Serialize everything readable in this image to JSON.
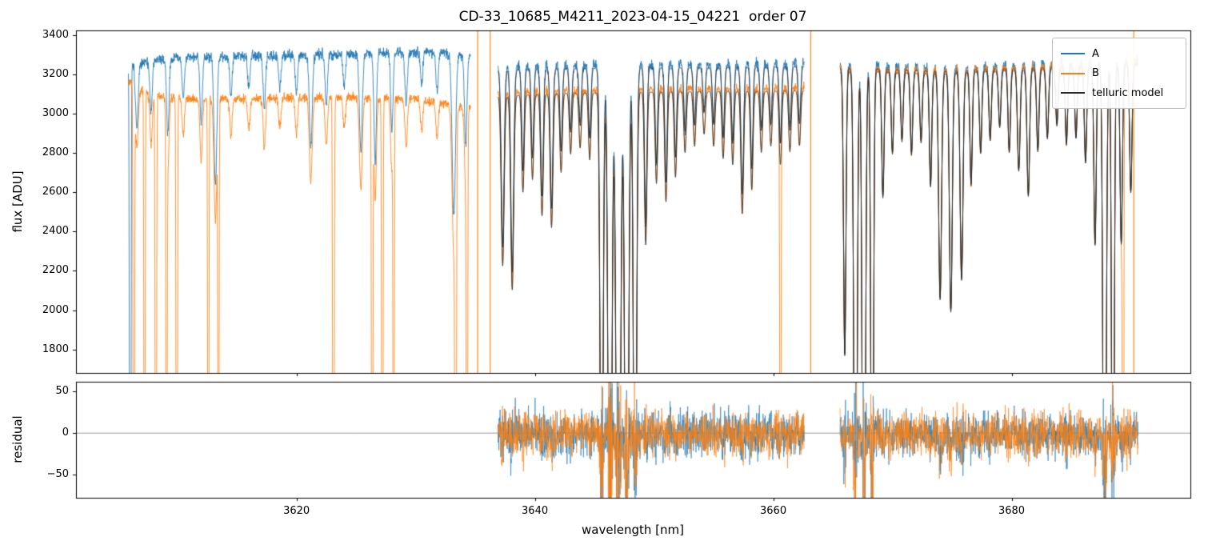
{
  "chart_data": {
    "type": "line",
    "title": "CD-33_10685_M4211_2023-04-15_04221  order 07",
    "xlabel": "wavelength [nm]",
    "legend_position": "upper right",
    "xlim": [
      3601.5,
      3695.0
    ],
    "xticks": [
      3620,
      3640,
      3660,
      3680
    ],
    "panels": [
      {
        "name": "flux",
        "ylabel": "flux [ADU]",
        "ylim": [
          1680,
          3425
        ],
        "yticks": [
          1800,
          2000,
          2200,
          2400,
          2600,
          2800,
          3000,
          3200,
          3400
        ]
      },
      {
        "name": "residual",
        "ylabel": "residual",
        "ylim": [
          -78,
          62
        ],
        "yticks": [
          -50,
          0,
          50
        ],
        "zero_line": true
      }
    ],
    "series": [
      {
        "name": "A",
        "color": "#1f77b4"
      },
      {
        "name": "B",
        "color": "#ff7f0e"
      },
      {
        "name": "telluric model",
        "color": "#2a2a2a"
      }
    ],
    "segments": [
      {
        "x0": 3605.9,
        "x1": 3634.6,
        "model": false
      },
      {
        "x0": 3636.9,
        "x1": 3662.6,
        "model": true
      },
      {
        "x0": 3665.6,
        "x1": 3690.6,
        "model": true
      }
    ],
    "continuum_A": [
      [
        3605.9,
        3260
      ],
      [
        3610,
        3285
      ],
      [
        3616,
        3295
      ],
      [
        3622,
        3300
      ],
      [
        3628,
        3310
      ],
      [
        3632,
        3315
      ],
      [
        3634.6,
        3295
      ],
      [
        3636.9,
        3240
      ],
      [
        3642,
        3245
      ],
      [
        3648,
        3250
      ],
      [
        3654,
        3252
      ],
      [
        3659,
        3255
      ],
      [
        3662.6,
        3258
      ],
      [
        3665.6,
        3250
      ],
      [
        3669,
        3245
      ],
      [
        3673,
        3235
      ],
      [
        3677,
        3240
      ],
      [
        3681,
        3250
      ],
      [
        3685,
        3255
      ],
      [
        3690.6,
        3270
      ]
    ],
    "continuum_B": [
      [
        3605.9,
        3160
      ],
      [
        3608,
        3090
      ],
      [
        3612,
        3075
      ],
      [
        3618,
        3080
      ],
      [
        3624,
        3085
      ],
      [
        3630,
        3075
      ],
      [
        3634.6,
        3030
      ],
      [
        3636.9,
        3105
      ],
      [
        3642,
        3120
      ],
      [
        3648,
        3125
      ],
      [
        3654,
        3130
      ],
      [
        3659,
        3130
      ],
      [
        3662.6,
        3135
      ],
      [
        3665.6,
        3230
      ],
      [
        3669,
        3230
      ],
      [
        3673,
        3220
      ],
      [
        3677,
        3230
      ],
      [
        3681,
        3240
      ],
      [
        3685,
        3245
      ],
      [
        3690.6,
        3265
      ]
    ],
    "telluric_lines": [
      [
        3606.6,
        0.1,
        0.12
      ],
      [
        3607.8,
        0.08,
        0.1
      ],
      [
        3609.2,
        0.12,
        0.1
      ],
      [
        3610.5,
        0.06,
        0.1
      ],
      [
        3612.0,
        0.1,
        0.1
      ],
      [
        3613.2,
        0.2,
        0.12
      ],
      [
        3614.5,
        0.06,
        0.1
      ],
      [
        3616.0,
        0.05,
        0.1
      ],
      [
        3617.3,
        0.08,
        0.1
      ],
      [
        3618.6,
        0.05,
        0.1
      ],
      [
        3620.0,
        0.06,
        0.1
      ],
      [
        3621.2,
        0.14,
        0.12
      ],
      [
        3622.5,
        0.08,
        0.1
      ],
      [
        3624.0,
        0.05,
        0.1
      ],
      [
        3625.4,
        0.15,
        0.12
      ],
      [
        3626.6,
        0.17,
        0.1
      ],
      [
        3628.0,
        0.12,
        0.1
      ],
      [
        3629.2,
        0.08,
        0.1
      ],
      [
        3630.5,
        0.05,
        0.1
      ],
      [
        3631.8,
        0.06,
        0.1
      ],
      [
        3633.2,
        0.25,
        0.14
      ],
      [
        3634.2,
        0.14,
        0.1
      ],
      [
        3637.3,
        0.28,
        0.12
      ],
      [
        3638.1,
        0.32,
        0.12
      ],
      [
        3639.0,
        0.16,
        0.1
      ],
      [
        3639.8,
        0.14,
        0.1
      ],
      [
        3640.6,
        0.2,
        0.11
      ],
      [
        3641.4,
        0.22,
        0.11
      ],
      [
        3642.2,
        0.13,
        0.1
      ],
      [
        3643.0,
        0.1,
        0.1
      ],
      [
        3643.8,
        0.09,
        0.1
      ],
      [
        3644.6,
        0.11,
        0.1
      ],
      [
        3645.6,
        0.85,
        0.12
      ],
      [
        3646.3,
        1.06,
        0.14
      ],
      [
        3647.0,
        1.1,
        0.16
      ],
      [
        3647.7,
        1.06,
        0.14
      ],
      [
        3648.4,
        0.92,
        0.12
      ],
      [
        3649.3,
        0.25,
        0.1
      ],
      [
        3650.2,
        0.15,
        0.1
      ],
      [
        3651.0,
        0.18,
        0.1
      ],
      [
        3651.8,
        0.14,
        0.1
      ],
      [
        3652.6,
        0.1,
        0.1
      ],
      [
        3653.4,
        0.09,
        0.1
      ],
      [
        3654.2,
        0.07,
        0.1
      ],
      [
        3655.0,
        0.09,
        0.1
      ],
      [
        3655.8,
        0.11,
        0.1
      ],
      [
        3656.6,
        0.12,
        0.1
      ],
      [
        3657.4,
        0.2,
        0.11
      ],
      [
        3658.2,
        0.16,
        0.1
      ],
      [
        3659.0,
        0.1,
        0.1
      ],
      [
        3659.8,
        0.09,
        0.1
      ],
      [
        3660.6,
        0.12,
        0.1
      ],
      [
        3661.4,
        0.1,
        0.1
      ],
      [
        3662.2,
        0.09,
        0.1
      ],
      [
        3666.0,
        0.45,
        0.1
      ],
      [
        3666.9,
        1.06,
        0.12
      ],
      [
        3667.6,
        1.1,
        0.12
      ],
      [
        3668.3,
        0.96,
        0.1
      ],
      [
        3669.2,
        0.2,
        0.1
      ],
      [
        3670.0,
        0.13,
        0.1
      ],
      [
        3670.8,
        0.11,
        0.1
      ],
      [
        3671.6,
        0.13,
        0.1
      ],
      [
        3672.4,
        0.11,
        0.1
      ],
      [
        3673.2,
        0.18,
        0.1
      ],
      [
        3674.0,
        0.36,
        0.12
      ],
      [
        3674.9,
        0.38,
        0.12
      ],
      [
        3675.8,
        0.33,
        0.12
      ],
      [
        3676.6,
        0.18,
        0.1
      ],
      [
        3677.4,
        0.13,
        0.1
      ],
      [
        3678.2,
        0.11,
        0.1
      ],
      [
        3679.0,
        0.09,
        0.1
      ],
      [
        3679.8,
        0.13,
        0.1
      ],
      [
        3680.6,
        0.16,
        0.11
      ],
      [
        3681.4,
        0.2,
        0.11
      ],
      [
        3682.2,
        0.13,
        0.1
      ],
      [
        3683.0,
        0.11,
        0.1
      ],
      [
        3683.8,
        0.09,
        0.1
      ],
      [
        3684.6,
        0.12,
        0.1
      ],
      [
        3685.4,
        0.11,
        0.1
      ],
      [
        3686.2,
        0.15,
        0.1
      ],
      [
        3687.0,
        0.28,
        0.1
      ],
      [
        3687.8,
        1.06,
        0.12
      ],
      [
        3688.5,
        0.96,
        0.1
      ],
      [
        3689.2,
        0.28,
        0.1
      ],
      [
        3690.0,
        0.2,
        0.1
      ]
    ],
    "spikes_A": [
      [
        3606.05,
        1.6,
        0.05
      ]
    ],
    "spikes_B": [
      [
        3606.35,
        1.5,
        0.045
      ],
      [
        3607.25,
        1.4,
        0.04
      ],
      [
        3608.2,
        1.5,
        0.045
      ],
      [
        3609.1,
        1.4,
        0.04
      ],
      [
        3609.95,
        1.5,
        0.045
      ],
      [
        3612.6,
        1.4,
        0.04
      ],
      [
        3613.45,
        1.3,
        0.04
      ],
      [
        3623.1,
        1.5,
        0.05
      ],
      [
        3626.35,
        1.4,
        0.045
      ],
      [
        3627.2,
        1.5,
        0.045
      ],
      [
        3628.15,
        1.3,
        0.04
      ],
      [
        3633.35,
        1.5,
        0.05
      ],
      [
        3634.3,
        1.4,
        0.045
      ],
      [
        3660.6,
        1.3,
        0.04
      ],
      [
        3689.35,
        1.3,
        0.05
      ]
    ],
    "artifact_verticals": [
      {
        "x": 3635.2,
        "series": "B"
      },
      {
        "x": 3636.25,
        "series": "B"
      },
      {
        "x": 3663.15,
        "series": "B"
      },
      {
        "x": 3690.25,
        "series": "B"
      }
    ],
    "noise": {
      "flux_sigma_A": 13,
      "flux_sigma_B": 11,
      "residual_sigma": 13
    }
  }
}
